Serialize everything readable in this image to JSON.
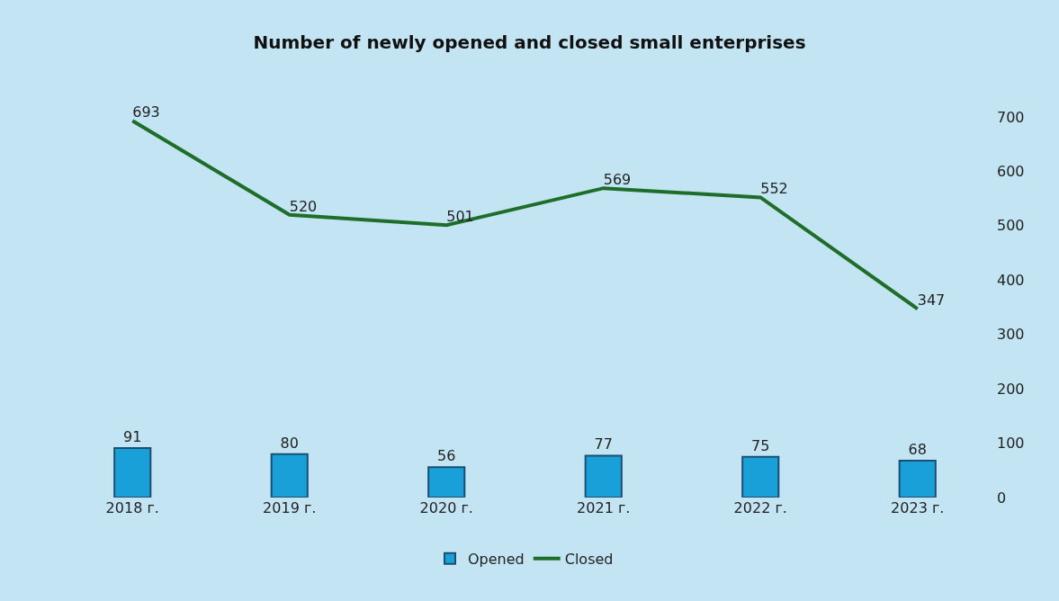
{
  "chart_data": {
    "type": "bar",
    "title": "Number of newly opened and closed small enterprises",
    "categories": [
      "2018 г.",
      "2019 г.",
      "2020 г.",
      "2021 г.",
      "2022 г.",
      "2023 г."
    ],
    "series": [
      {
        "name": "Opened",
        "color": "#1aa0d8",
        "values": [
          91,
          80,
          56,
          77,
          75,
          68
        ]
      },
      {
        "name": "Closed",
        "type": "line",
        "color": "#1e6e2a",
        "values": [
          693,
          520,
          501,
          569,
          552,
          347
        ]
      }
    ],
    "ylim": [
      0,
      700
    ],
    "yticks": [
      0,
      100,
      200,
      300,
      400,
      500,
      600,
      700
    ],
    "grid": false,
    "legend": "bottom",
    "data_labels": true,
    "marker": "none",
    "line_style": "solid"
  }
}
